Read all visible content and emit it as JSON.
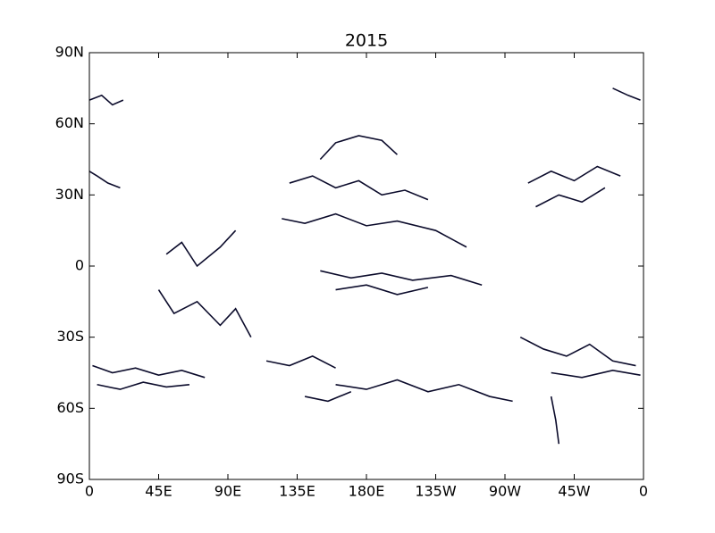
{
  "chart_data": {
    "type": "trajectories",
    "title": "2015",
    "color": "#0b0b2b",
    "xlim": [
      0,
      360
    ],
    "ylim": [
      -90,
      90
    ],
    "xticks": [
      0,
      {
        "value": 45,
        "label": "45E"
      },
      {
        "value": 90,
        "label": "90E"
      },
      {
        "value": 135,
        "label": "135E"
      },
      {
        "value": 180,
        "label": "180E"
      },
      {
        "value": 225,
        "label": "135W"
      },
      {
        "value": 270,
        "label": "90W"
      },
      {
        "value": 315,
        "label": "45W"
      },
      {
        "value": 360,
        "label": "0"
      }
    ],
    "yticks": [
      {
        "value": -90,
        "label": "90S"
      },
      {
        "value": -60,
        "label": "60S"
      },
      {
        "value": -30,
        "label": "30S"
      },
      0,
      {
        "value": 30,
        "label": "30N"
      },
      {
        "value": 60,
        "label": "60N"
      },
      {
        "value": 90,
        "label": "90N"
      }
    ],
    "tracks": [
      {
        "x": [
          2,
          15,
          30,
          45,
          60,
          75
        ],
        "y": [
          -42,
          -45,
          -43,
          -46,
          -44,
          -47
        ]
      },
      {
        "x": [
          5,
          20,
          35,
          50,
          65
        ],
        "y": [
          -50,
          -52,
          -49,
          -51,
          -50
        ]
      },
      {
        "x": [
          130,
          145,
          160,
          175,
          190,
          205,
          220
        ],
        "y": [
          35,
          38,
          33,
          36,
          30,
          32,
          28
        ]
      },
      {
        "x": [
          125,
          140,
          160,
          180,
          200,
          225,
          245
        ],
        "y": [
          20,
          18,
          22,
          17,
          19,
          15,
          8
        ]
      },
      {
        "x": [
          150,
          160,
          175,
          190,
          200
        ],
        "y": [
          45,
          52,
          55,
          53,
          47
        ]
      },
      {
        "x": [
          285,
          300,
          315,
          330,
          345
        ],
        "y": [
          35,
          40,
          36,
          42,
          38
        ]
      },
      {
        "x": [
          290,
          305,
          320,
          335
        ],
        "y": [
          25,
          30,
          27,
          33
        ]
      },
      {
        "x": [
          150,
          170,
          190,
          210,
          235,
          255
        ],
        "y": [
          -2,
          -5,
          -3,
          -6,
          -4,
          -8
        ]
      },
      {
        "x": [
          160,
          180,
          200,
          220
        ],
        "y": [
          -10,
          -8,
          -12,
          -9
        ]
      },
      {
        "x": [
          160,
          180,
          200,
          220,
          240,
          260,
          275
        ],
        "y": [
          -50,
          -52,
          -48,
          -53,
          -50,
          -55,
          -57
        ]
      },
      {
        "x": [
          140,
          155,
          170
        ],
        "y": [
          -55,
          -57,
          -53
        ]
      },
      {
        "x": [
          280,
          295,
          310,
          325,
          340,
          355
        ],
        "y": [
          -30,
          -35,
          -38,
          -33,
          -40,
          -42
        ]
      },
      {
        "x": [
          300,
          320,
          340,
          358
        ],
        "y": [
          -45,
          -47,
          -44,
          -46
        ]
      },
      {
        "x": [
          45,
          55,
          70,
          85,
          95,
          105
        ],
        "y": [
          -10,
          -20,
          -15,
          -25,
          -18,
          -30
        ]
      },
      {
        "x": [
          50,
          60,
          70,
          85,
          95
        ],
        "y": [
          5,
          10,
          0,
          8,
          15
        ]
      },
      {
        "x": [
          0,
          8,
          15,
          22
        ],
        "y": [
          70,
          72,
          68,
          70
        ]
      },
      {
        "x": [
          0,
          5,
          12,
          20
        ],
        "y": [
          40,
          38,
          35,
          33
        ]
      },
      {
        "x": [
          340,
          350,
          358
        ],
        "y": [
          75,
          72,
          70
        ]
      },
      {
        "x": [
          300,
          303,
          305
        ],
        "y": [
          -55,
          -65,
          -75
        ]
      },
      {
        "x": [
          115,
          130,
          145,
          160
        ],
        "y": [
          -40,
          -42,
          -38,
          -43
        ]
      }
    ]
  }
}
